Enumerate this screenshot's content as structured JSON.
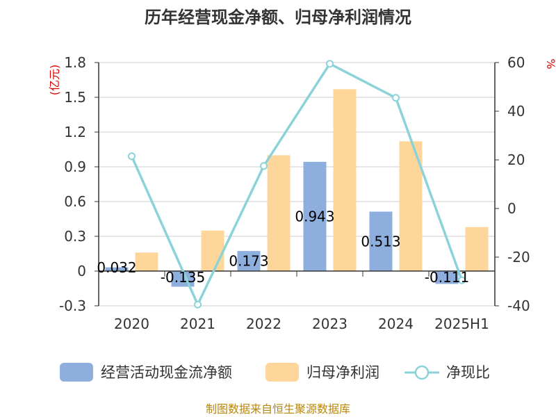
{
  "chart_data": {
    "type": "bar",
    "title": "历年经营现金净额、归母净利润情况",
    "categories": [
      "2020",
      "2021",
      "2022",
      "2023",
      "2024",
      "2025H1"
    ],
    "y_left": {
      "unit": "(亿元)",
      "ticks": [
        "1.8",
        "1.5",
        "1.2",
        "0.9",
        "0.6",
        "0.3",
        "0",
        "-0.3"
      ],
      "ylim": [
        -0.3,
        1.8
      ]
    },
    "y_right": {
      "unit": "%",
      "ticks": [
        "60",
        "40",
        "20",
        "0",
        "-20",
        "-40"
      ],
      "ylim": [
        -40,
        60
      ]
    },
    "series": [
      {
        "name": "经营活动现金流净额",
        "type": "bar",
        "color": "#8eaedd",
        "values": [
          0.032,
          -0.135,
          0.173,
          0.943,
          0.513,
          -0.111
        ],
        "labels": [
          "0.032",
          "-0.135",
          "0.173",
          "0.943",
          "0.513",
          "-0.111"
        ]
      },
      {
        "name": "归母净利润",
        "type": "bar",
        "color": "#fed69a",
        "values": [
          0.16,
          0.35,
          1.0,
          1.57,
          1.12,
          0.38
        ]
      },
      {
        "name": "净现比",
        "type": "line",
        "color": "#8bd3d9",
        "axis": "right",
        "values": [
          21.5,
          -39.5,
          17.5,
          59.5,
          45.5,
          -29.5
        ]
      }
    ],
    "grid": true,
    "legend_position": "bottom"
  },
  "footer": {
    "source": "制图数据来自恒生聚源数据库"
  }
}
